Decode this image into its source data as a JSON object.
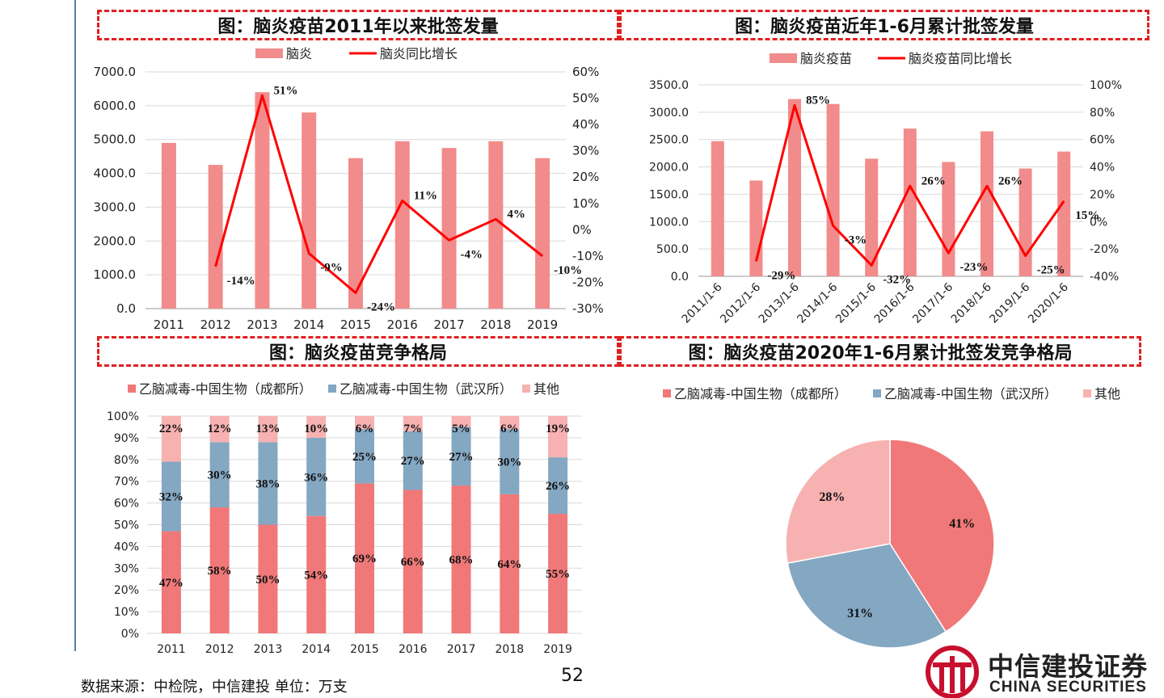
{
  "titles": {
    "t1": "图：脑炎疫苗2011年以来批签发量",
    "t2": "图：脑炎疫苗近年1-6月累计批签发量",
    "t3": "图：脑炎疫苗竞争格局",
    "t4": "图：脑炎疫苗2020年1-6月累计批签发竞争格局"
  },
  "footer": {
    "source": "数据来源：中检院，中信建投  单位：万支",
    "page_number": "52",
    "logo_cn": "中信建投证券",
    "logo_en": "CHINA SECURITIES"
  },
  "colors": {
    "bar": "#f28b8b",
    "line": "#ff0000",
    "chengdu": "#f07878",
    "wuhan": "#84a7c2",
    "other": "#f7b1b1",
    "logo": "#c8102e",
    "title_border": "#e02020"
  },
  "chart_data": [
    {
      "id": "annual",
      "type": "bar",
      "legend": [
        "脑炎",
        "脑炎同比增长"
      ],
      "legend_position": "top",
      "categories": [
        "2011",
        "2012",
        "2013",
        "2014",
        "2015",
        "2016",
        "2017",
        "2018",
        "2019"
      ],
      "series": [
        {
          "name": "脑炎",
          "type": "bar",
          "axis": "left",
          "values": [
            4900,
            4250,
            6400,
            5800,
            4450,
            4950,
            4750,
            4950,
            4450
          ]
        },
        {
          "name": "脑炎同比增长",
          "type": "line",
          "axis": "right",
          "values": [
            null,
            -14,
            51,
            -9,
            -24,
            11,
            -4,
            4,
            -10
          ]
        }
      ],
      "data_labels": [
        "",
        "-14%",
        "51%",
        "-9%",
        "-24%",
        "11%",
        "-4%",
        "4%",
        "-10%"
      ],
      "y_left": {
        "min": 0,
        "max": 7000,
        "step": 1000,
        "ticks": [
          "0.0",
          "1000.0",
          "2000.0",
          "3000.0",
          "4000.0",
          "5000.0",
          "6000.0",
          "7000.0"
        ]
      },
      "y_right": {
        "min": -30,
        "max": 60,
        "step": 10,
        "ticks": [
          "-30%",
          "-20%",
          "-10%",
          "0%",
          "10%",
          "20%",
          "30%",
          "40%",
          "50%",
          "60%"
        ]
      },
      "grid": true
    },
    {
      "id": "h1",
      "type": "bar",
      "legend": [
        "脑炎疫苗",
        "脑炎疫苗同比增长"
      ],
      "legend_position": "top",
      "categories": [
        "2011/1-6",
        "2012/1-6",
        "2013/1-6",
        "2014/1-6",
        "2015/1-6",
        "2016/1-6",
        "2017/1-6",
        "2018/1-6",
        "2019/1-6",
        "2020/1-6"
      ],
      "series": [
        {
          "name": "脑炎疫苗",
          "type": "bar",
          "axis": "left",
          "values": [
            2470,
            1750,
            3240,
            3150,
            2150,
            2700,
            2090,
            2650,
            1970,
            2280
          ]
        },
        {
          "name": "脑炎疫苗同比增长",
          "type": "line",
          "axis": "right",
          "values": [
            null,
            -29,
            85,
            -3,
            -32,
            26,
            -23,
            26,
            -25,
            15
          ]
        }
      ],
      "data_labels": [
        "",
        "-29%",
        "85%",
        "-3%",
        "-32%",
        "26%",
        "-23%",
        "26%",
        "-25%",
        "15%"
      ],
      "y_left": {
        "min": 0,
        "max": 3500,
        "step": 500,
        "ticks": [
          "0.0",
          "500.0",
          "1000.0",
          "1500.0",
          "2000.0",
          "2500.0",
          "3000.0",
          "3500.0"
        ]
      },
      "y_right": {
        "min": -40,
        "max": 100,
        "step": 20,
        "ticks": [
          "-40%",
          "-20%",
          "0%",
          "20%",
          "40%",
          "60%",
          "80%",
          "100%"
        ]
      },
      "grid": true
    },
    {
      "id": "share",
      "type": "bar",
      "stacked": true,
      "legend": [
        "乙脑减毒-中国生物（成都所）",
        "乙脑减毒-中国生物（武汉所）",
        "其他"
      ],
      "legend_position": "top",
      "categories": [
        "2011",
        "2012",
        "2013",
        "2014",
        "2015",
        "2016",
        "2017",
        "2018",
        "2019"
      ],
      "series": [
        {
          "name": "乙脑减毒-中国生物（成都所）",
          "values": [
            47,
            58,
            50,
            54,
            69,
            66,
            68,
            64,
            55
          ]
        },
        {
          "name": "乙脑减毒-中国生物（武汉所）",
          "values": [
            32,
            30,
            38,
            36,
            25,
            27,
            27,
            30,
            26
          ]
        },
        {
          "name": "其他",
          "values": [
            22,
            12,
            13,
            10,
            6,
            7,
            5,
            6,
            19
          ]
        }
      ],
      "labels": [
        [
          "47%",
          "58%",
          "50%",
          "54%",
          "69%",
          "66%",
          "68%",
          "64%",
          "55%"
        ],
        [
          "32%",
          "30%",
          "38%",
          "36%",
          "25%",
          "27%",
          "27%",
          "30%",
          "26%"
        ],
        [
          "22%",
          "12%",
          "13%",
          "10%",
          "6%",
          "7%",
          "5%",
          "6%",
          "19%"
        ]
      ],
      "y": {
        "min": 0,
        "max": 100,
        "step": 10,
        "ticks": [
          "0%",
          "10%",
          "20%",
          "30%",
          "40%",
          "50%",
          "60%",
          "70%",
          "80%",
          "90%",
          "100%"
        ]
      },
      "grid": true
    },
    {
      "id": "pie2020",
      "type": "pie",
      "legend": [
        "乙脑减毒-中国生物（成都所）",
        "乙脑减毒-中国生物（武汉所）",
        "其他"
      ],
      "legend_position": "top",
      "slices": [
        {
          "name": "乙脑减毒-中国生物（成都所）",
          "value": 41,
          "label": "41%"
        },
        {
          "name": "乙脑减毒-中国生物（武汉所）",
          "value": 31,
          "label": "31%"
        },
        {
          "name": "其他",
          "value": 28,
          "label": "28%"
        }
      ]
    }
  ]
}
